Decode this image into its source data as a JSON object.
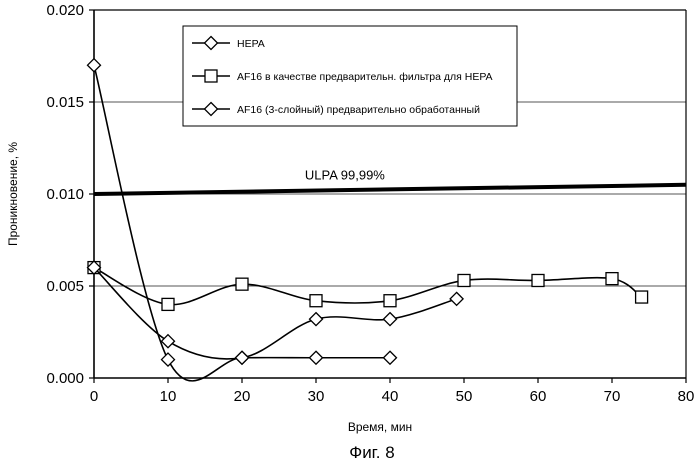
{
  "chart_data": {
    "type": "line",
    "xlabel": "Время, мин",
    "ylabel": "Проникновение, %",
    "caption": "Фиг. 8",
    "xlim": [
      0,
      80
    ],
    "ylim": [
      0,
      0.02
    ],
    "x_ticks": [
      "0",
      "10",
      "20",
      "30",
      "40",
      "50",
      "60",
      "70",
      "80"
    ],
    "y_ticks": [
      "0.000",
      "0.005",
      "0.010",
      "0.015",
      "0.020"
    ],
    "grid": "horizontal",
    "legend_position": "top-center",
    "smoothed": true,
    "series": [
      {
        "name": "HEPA",
        "marker": "diamond",
        "x": [
          0,
          10,
          20,
          30,
          40
        ],
        "y": [
          0.017,
          0.001,
          0.0011,
          0.0011,
          0.0011
        ]
      },
      {
        "name": "AF16 в качестве предварительн. фильтра для HEPA",
        "marker": "square",
        "x": [
          0,
          10,
          20,
          30,
          40,
          50,
          60,
          70,
          74
        ],
        "y": [
          0.006,
          0.004,
          0.0051,
          0.0042,
          0.0042,
          0.0053,
          0.0053,
          0.0054,
          0.0044
        ]
      },
      {
        "name": "AF16 (3-слойный) предварительно обработанный",
        "marker": "diamond",
        "x": [
          0,
          10,
          20,
          30,
          40,
          49
        ],
        "y": [
          0.006,
          0.002,
          0.0011,
          0.0032,
          0.0032,
          0.0043
        ]
      }
    ],
    "reference_line": {
      "label": "ULPA 99,99%",
      "y_start": 0.01,
      "y_end": 0.0105
    }
  }
}
